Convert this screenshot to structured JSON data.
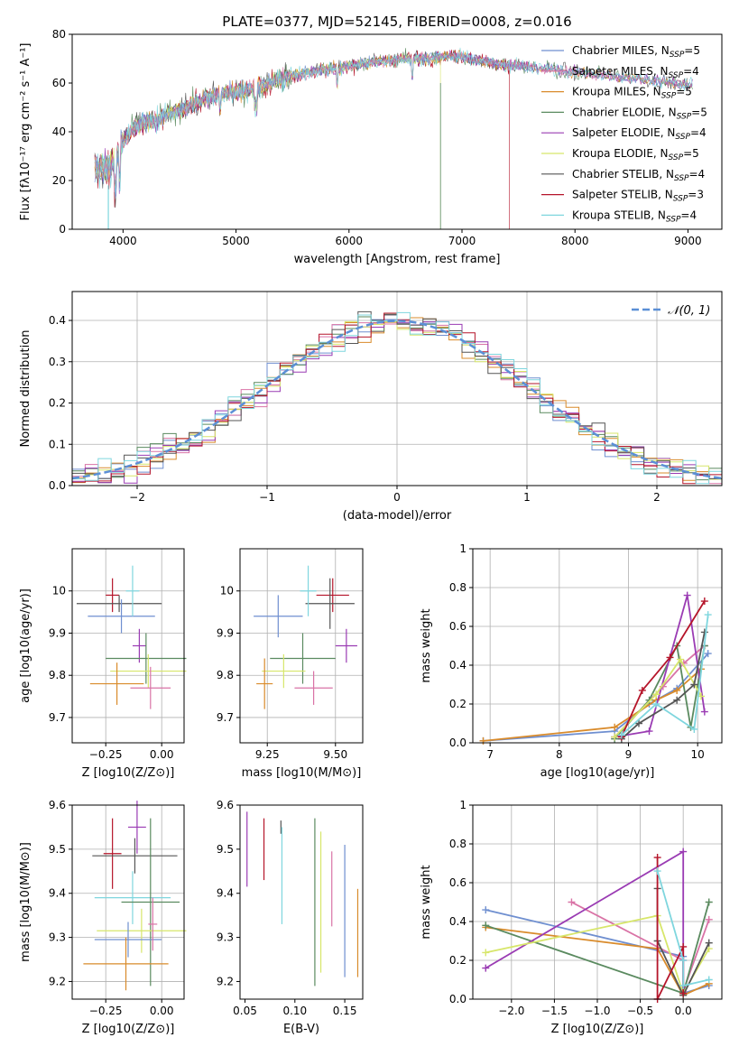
{
  "figure_title": "PLATE=0377, MJD=52145, FIBERID=0008, z=0.016",
  "model_colors": {
    "Chabrier MILES": "#6f8fd0",
    "Salpeter MILES": "#d973a6",
    "Kroupa MILES": "#d98b2b",
    "Chabrier ELODIE": "#5a8a5f",
    "Salpeter ELODIE": "#9a3bb3",
    "Kroupa ELODIE": "#d7e66a",
    "Chabrier STELIB": "#555555",
    "Salpeter STELIB": "#b5152a",
    "Kroupa STELIB": "#7fd6de"
  },
  "chart_data": [
    {
      "id": "spectrum",
      "type": "line",
      "title": "PLATE=0377, MJD=52145, FIBERID=0008, z=0.016",
      "xlabel": "wavelength [Angstrom, rest frame]",
      "ylabel": "Flux [fλ10⁻¹⁷ erg cm⁻² s⁻¹ A⁻¹]",
      "xlim": [
        3550,
        9300
      ],
      "ylim": [
        0,
        80
      ],
      "xticks": [
        4000,
        5000,
        6000,
        7000,
        8000,
        9000
      ],
      "yticks": [
        0,
        20,
        40,
        60,
        80
      ],
      "grid": false,
      "legend_position": "top-right",
      "continuum": {
        "x": [
          3750,
          3850,
          3950,
          4000,
          4100,
          4200,
          4300,
          4500,
          4700,
          4900,
          5100,
          5300,
          5500,
          5700,
          5900,
          6100,
          6300,
          6500,
          6700,
          6900,
          7100,
          7300,
          7500,
          7700,
          7900,
          8100,
          8300,
          8500,
          8700,
          8900,
          9050
        ],
        "y": [
          26,
          24,
          30,
          36,
          42,
          44,
          45,
          49,
          53,
          56,
          57,
          60,
          63,
          65,
          66,
          68,
          69,
          70,
          70,
          71,
          70,
          68,
          67,
          66,
          65,
          64,
          63,
          62,
          61,
          60,
          59
        ]
      },
      "series": [
        {
          "name": "Chabrier MILES",
          "nssp": "5"
        },
        {
          "name": "Salpeter MILES",
          "nssp": "4"
        },
        {
          "name": "Kroupa MILES",
          "nssp": "5"
        },
        {
          "name": "Chabrier ELODIE",
          "nssp": "5"
        },
        {
          "name": "Salpeter ELODIE",
          "nssp": "4"
        },
        {
          "name": "Kroupa ELODIE",
          "nssp": "5"
        },
        {
          "name": "Chabrier STELIB",
          "nssp": "4"
        },
        {
          "name": "Salpeter STELIB",
          "nssp": "3"
        },
        {
          "name": "Kroupa STELIB",
          "nssp": "4"
        }
      ],
      "legend_labels": [
        "Chabrier MILES, N",
        "Salpeter MILES, N",
        "Kroupa MILES, N",
        "Chabrier ELODIE, N",
        "Salpeter ELODIE, N",
        "Kroupa ELODIE, N",
        "Chabrier STELIB, N",
        "Salpeter STELIB, N",
        "Kroupa STELIB, N"
      ],
      "legend_subscript": "SSP",
      "legend_values": [
        "=5",
        "=4",
        "=5",
        "=5",
        "=4",
        "=5",
        "=4",
        "=3",
        "=4"
      ]
    },
    {
      "id": "residuals",
      "type": "histogram",
      "xlabel": "(data-model)/error",
      "ylabel": "Normed distribution",
      "xlim": [
        -2.5,
        2.5
      ],
      "ylim": [
        0,
        0.47
      ],
      "xticks": [
        -2,
        -1,
        0,
        1,
        2
      ],
      "yticks": [
        0.0,
        0.1,
        0.2,
        0.3,
        0.4
      ],
      "grid": true,
      "legend_position": "top-right",
      "reference_label": "𝒩(0, 1)",
      "reference_color": "#5b8fd6",
      "bin_width": 0.1
    },
    {
      "id": "age-vs-Z",
      "type": "errorbar",
      "xlabel": "Z [log10(Z/Z⊙)]",
      "ylabel": "age [log10(age/yr)]",
      "xlim": [
        -0.4,
        0.1
      ],
      "ylim": [
        9.64,
        10.1
      ],
      "xticks": [
        -0.25,
        0.0
      ],
      "xticklabels": [
        "−0.25",
        "0.00"
      ],
      "yticks": [
        9.7,
        9.8,
        9.9,
        10.0
      ],
      "grid": true,
      "points": [
        {
          "model": "Salpeter STELIB",
          "x": -0.22,
          "xerr": 0.03,
          "y": 9.99,
          "yerr": 0.04
        },
        {
          "model": "Chabrier STELIB",
          "x": -0.19,
          "xerr": 0.19,
          "y": 9.97,
          "yerr": 0.02
        },
        {
          "model": "Chabrier MILES",
          "x": -0.18,
          "xerr": 0.15,
          "y": 9.94,
          "yerr": 0.04
        },
        {
          "model": "Kroupa STELIB",
          "x": -0.13,
          "xerr": 0.03,
          "y": 10.0,
          "yerr": 0.06
        },
        {
          "model": "Salpeter ELODIE",
          "x": -0.1,
          "xerr": 0.03,
          "y": 9.87,
          "yerr": 0.04
        },
        {
          "model": "Chabrier ELODIE",
          "x": -0.07,
          "xerr": 0.18,
          "y": 9.84,
          "yerr": 0.06
        },
        {
          "model": "Kroupa ELODIE",
          "x": -0.06,
          "xerr": 0.17,
          "y": 9.81,
          "yerr": 0.04
        },
        {
          "model": "Kroupa MILES",
          "x": -0.2,
          "xerr": 0.12,
          "y": 9.78,
          "yerr": 0.05
        },
        {
          "model": "Salpeter MILES",
          "x": -0.05,
          "xerr": 0.09,
          "y": 9.77,
          "yerr": 0.05
        }
      ]
    },
    {
      "id": "age-vs-mass",
      "type": "errorbar",
      "xlabel": "mass [log10(M/M⊙)]",
      "ylabel": "",
      "xlim": [
        9.15,
        9.6
      ],
      "ylim": [
        9.64,
        10.1
      ],
      "xticks": [
        9.25,
        9.5
      ],
      "xticklabels": [
        "9.25",
        "9.50"
      ],
      "yticks": [
        9.7,
        9.8,
        9.9,
        10.0
      ],
      "grid": true,
      "points": [
        {
          "model": "Salpeter STELIB",
          "x": 9.49,
          "xerr": 0.06,
          "y": 9.99,
          "yerr": 0.04
        },
        {
          "model": "Chabrier STELIB",
          "x": 9.48,
          "xerr": 0.09,
          "y": 9.97,
          "yerr": 0.06
        },
        {
          "model": "Chabrier MILES",
          "x": 9.29,
          "xerr": 0.09,
          "y": 9.94,
          "yerr": 0.05
        },
        {
          "model": "Kroupa STELIB",
          "x": 9.4,
          "xerr": 0.03,
          "y": 10.0,
          "yerr": 0.06
        },
        {
          "model": "Salpeter ELODIE",
          "x": 9.54,
          "xerr": 0.04,
          "y": 9.87,
          "yerr": 0.04
        },
        {
          "model": "Chabrier ELODIE",
          "x": 9.38,
          "xerr": 0.12,
          "y": 9.84,
          "yerr": 0.06
        },
        {
          "model": "Kroupa ELODIE",
          "x": 9.31,
          "xerr": 0.08,
          "y": 9.81,
          "yerr": 0.04
        },
        {
          "model": "Kroupa MILES",
          "x": 9.24,
          "xerr": 0.03,
          "y": 9.78,
          "yerr": 0.06
        },
        {
          "model": "Salpeter MILES",
          "x": 9.42,
          "xerr": 0.07,
          "y": 9.77,
          "yerr": 0.04
        }
      ]
    },
    {
      "id": "weight-vs-age",
      "type": "line",
      "xlabel": "age [log10(age/yr)]",
      "ylabel": "mass weight",
      "xlim": [
        6.75,
        10.35
      ],
      "ylim": [
        0,
        1.0
      ],
      "xticks": [
        7,
        8,
        9,
        10
      ],
      "yticks": [
        0.0,
        0.2,
        0.4,
        0.6,
        0.8,
        1.0
      ],
      "grid": true,
      "series": [
        {
          "name": "Chabrier MILES",
          "points": [
            [
              6.9,
              0.01
            ],
            [
              8.8,
              0.06
            ],
            [
              9.3,
              0.2
            ],
            [
              9.7,
              0.28
            ],
            [
              10.15,
              0.46
            ]
          ]
        },
        {
          "name": "Salpeter MILES",
          "points": [
            [
              8.8,
              0.03
            ],
            [
              9.5,
              0.29
            ],
            [
              9.8,
              0.41
            ],
            [
              10.1,
              0.5
            ]
          ]
        },
        {
          "name": "Kroupa MILES",
          "points": [
            [
              6.9,
              0.01
            ],
            [
              8.8,
              0.08
            ],
            [
              9.4,
              0.22
            ],
            [
              9.7,
              0.27
            ],
            [
              10.05,
              0.38
            ]
          ]
        },
        {
          "name": "Chabrier ELODIE",
          "points": [
            [
              8.8,
              0.02
            ],
            [
              9.3,
              0.22
            ],
            [
              9.7,
              0.5
            ],
            [
              9.9,
              0.08
            ],
            [
              10.1,
              0.5
            ]
          ]
        },
        {
          "name": "Salpeter ELODIE",
          "points": [
            [
              8.8,
              0.03
            ],
            [
              9.3,
              0.06
            ],
            [
              9.85,
              0.76
            ],
            [
              10.1,
              0.16
            ]
          ]
        },
        {
          "name": "Kroupa ELODIE",
          "points": [
            [
              8.8,
              0.03
            ],
            [
              9.4,
              0.25
            ],
            [
              9.75,
              0.43
            ],
            [
              10.05,
              0.24
            ]
          ]
        },
        {
          "name": "Chabrier STELIB",
          "points": [
            [
              8.9,
              0.02
            ],
            [
              9.15,
              0.1
            ],
            [
              9.7,
              0.22
            ],
            [
              9.95,
              0.3
            ],
            [
              10.1,
              0.57
            ]
          ]
        },
        {
          "name": "Salpeter STELIB",
          "points": [
            [
              8.9,
              0.03
            ],
            [
              9.2,
              0.27
            ],
            [
              9.6,
              0.44
            ],
            [
              10.1,
              0.73
            ]
          ]
        },
        {
          "name": "Kroupa STELIB",
          "points": [
            [
              8.9,
              0.04
            ],
            [
              9.4,
              0.2
            ],
            [
              9.95,
              0.07
            ],
            [
              10.15,
              0.66
            ]
          ]
        }
      ]
    },
    {
      "id": "mass-vs-Z",
      "type": "errorbar",
      "xlabel": "Z [log10(Z/Z⊙)]",
      "ylabel": "mass [log10(M/M⊙)]",
      "xlim": [
        -0.4,
        0.1
      ],
      "ylim": [
        9.16,
        9.6
      ],
      "xticks": [
        -0.25,
        0.0
      ],
      "xticklabels": [
        "−0.25",
        "0.00"
      ],
      "yticks": [
        9.2,
        9.3,
        9.4,
        9.5,
        9.6
      ],
      "grid": true,
      "points": [
        {
          "model": "Salpeter STELIB",
          "x": -0.22,
          "xerr": 0.04,
          "y": 9.49,
          "yerr": 0.08
        },
        {
          "model": "Salpeter ELODIE",
          "x": -0.11,
          "xerr": 0.04,
          "y": 9.55,
          "yerr": 0.06
        },
        {
          "model": "Chabrier STELIB",
          "x": -0.12,
          "xerr": 0.19,
          "y": 9.485,
          "yerr": 0.04
        },
        {
          "model": "Kroupa STELIB",
          "x": -0.13,
          "xerr": 0.17,
          "y": 9.39,
          "yerr": 0.06
        },
        {
          "model": "Chabrier ELODIE",
          "x": -0.05,
          "xerr": 0.13,
          "y": 9.38,
          "yerr": 0.19
        },
        {
          "model": "Kroupa ELODIE",
          "x": -0.09,
          "xerr": 0.2,
          "y": 9.315,
          "yerr": 0.05
        },
        {
          "model": "Chabrier MILES",
          "x": -0.15,
          "xerr": 0.15,
          "y": 9.295,
          "yerr": 0.04
        },
        {
          "model": "Kroupa MILES",
          "x": -0.16,
          "xerr": 0.19,
          "y": 9.24,
          "yerr": 0.06
        },
        {
          "model": "Salpeter MILES",
          "x": -0.04,
          "xerr": 0.02,
          "y": 9.33,
          "yerr": 0.06
        }
      ]
    },
    {
      "id": "mass-vs-ebv",
      "type": "errorbar",
      "xlabel": "E(B-V)",
      "ylabel": "",
      "xlim": [
        0.045,
        0.168
      ],
      "ylim": [
        9.16,
        9.6
      ],
      "xticks": [
        0.05,
        0.1,
        0.15
      ],
      "xticklabels": [
        "0.05",
        "0.10",
        "0.15"
      ],
      "yticks": [
        9.2,
        9.3,
        9.4,
        9.5,
        9.6
      ],
      "grid": false,
      "points": [
        {
          "model": "Salpeter ELODIE",
          "x": 0.052,
          "y": 9.5,
          "yerr": 0.085
        },
        {
          "model": "Salpeter STELIB",
          "x": 0.069,
          "y": 9.5,
          "yerr": 0.07
        },
        {
          "model": "Chabrier STELIB",
          "x": 0.086,
          "y": 9.55,
          "yerr": 0.015
        },
        {
          "model": "Kroupa STELIB",
          "x": 0.087,
          "y": 9.44,
          "yerr": 0.11
        },
        {
          "model": "Chabrier ELODIE",
          "x": 0.12,
          "y": 9.38,
          "yerr": 0.19
        },
        {
          "model": "Kroupa ELODIE",
          "x": 0.126,
          "y": 9.38,
          "yerr": 0.16
        },
        {
          "model": "Salpeter MILES",
          "x": 0.137,
          "y": 9.41,
          "yerr": 0.085
        },
        {
          "model": "Chabrier MILES",
          "x": 0.15,
          "y": 9.36,
          "yerr": 0.15
        },
        {
          "model": "Kroupa MILES",
          "x": 0.163,
          "y": 9.31,
          "yerr": 0.1
        }
      ]
    },
    {
      "id": "weight-vs-Z",
      "type": "line",
      "xlabel": "Z [log10(Z/Z⊙)]",
      "ylabel": "mass weight",
      "xlim": [
        -2.45,
        0.45
      ],
      "ylim": [
        0,
        1.0
      ],
      "xticks": [
        -2.0,
        -1.5,
        -1.0,
        -0.5,
        0.0
      ],
      "xticklabels": [
        "−2.0",
        "−1.5",
        "−1.0",
        "−0.5",
        "0.0"
      ],
      "yticks": [
        0.0,
        0.2,
        0.4,
        0.6,
        0.8,
        1.0
      ],
      "grid": true,
      "series": [
        {
          "name": "Chabrier MILES",
          "points": [
            [
              -2.3,
              0.46
            ],
            [
              0.0,
              0.22
            ],
            [
              0.0,
              0.03
            ],
            [
              0.3,
              0.07
            ]
          ]
        },
        {
          "name": "Salpeter MILES",
          "points": [
            [
              -1.3,
              0.5
            ],
            [
              0.0,
              0.2
            ],
            [
              0.0,
              0.04
            ],
            [
              0.3,
              0.41
            ]
          ]
        },
        {
          "name": "Kroupa MILES",
          "points": [
            [
              -2.3,
              0.37
            ],
            [
              -0.3,
              0.26
            ],
            [
              0.0,
              0.02
            ],
            [
              0.3,
              0.08
            ]
          ]
        },
        {
          "name": "Chabrier ELODIE",
          "points": [
            [
              -2.3,
              0.38
            ],
            [
              0.0,
              0.03
            ],
            [
              0.3,
              0.5
            ]
          ]
        },
        {
          "name": "Salpeter ELODIE",
          "points": [
            [
              -2.3,
              0.16
            ],
            [
              0.0,
              0.76
            ],
            [
              0.0,
              0.06
            ]
          ]
        },
        {
          "name": "Kroupa ELODIE",
          "points": [
            [
              -2.3,
              0.24
            ],
            [
              -0.3,
              0.43
            ],
            [
              0.0,
              0.03
            ],
            [
              0.3,
              0.26
            ]
          ]
        },
        {
          "name": "Chabrier STELIB",
          "points": [
            [
              -0.3,
              0.57
            ],
            [
              -0.3,
              0.3
            ],
            [
              0.0,
              0.02
            ],
            [
              0.3,
              0.29
            ]
          ]
        },
        {
          "name": "Salpeter STELIB",
          "points": [
            [
              -0.3,
              0.73
            ],
            [
              -0.3,
              0.0
            ],
            [
              0.0,
              0.27
            ],
            [
              0.0,
              0.03
            ]
          ]
        },
        {
          "name": "Kroupa STELIB",
          "points": [
            [
              -0.3,
              0.66
            ],
            [
              0.0,
              0.2
            ],
            [
              0.0,
              0.07
            ],
            [
              0.3,
              0.1
            ]
          ]
        }
      ]
    }
  ]
}
